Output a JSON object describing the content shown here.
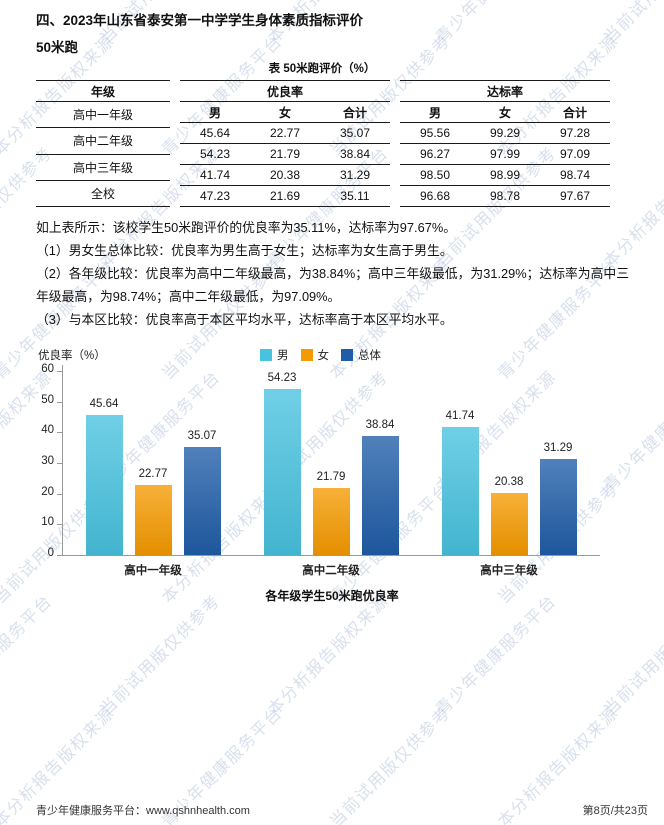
{
  "page": {
    "title": "四、2023年山东省泰安第一中学学生身体素质指标评价",
    "subtitle": "50米跑",
    "footer_left": "青少年健康服务平台：www.qshnhealth.com",
    "footer_right": "第8页/共23页"
  },
  "watermark": {
    "phrases": [
      "青少年健康服务平台",
      "当前试用版仅供参考",
      "本分析报告版权来源"
    ],
    "color": "rgba(162,180,212,0.42)"
  },
  "table": {
    "caption": "表 50米跑评价（%）",
    "row_header": "年级",
    "groups": [
      {
        "label": "优良率",
        "columns": [
          "男",
          "女",
          "合计"
        ]
      },
      {
        "label": "达标率",
        "columns": [
          "男",
          "女",
          "合计"
        ]
      }
    ],
    "rows": [
      {
        "label": "高中一年级",
        "excellent": [
          "45.64",
          "22.77",
          "35.07"
        ],
        "pass": [
          "95.56",
          "99.29",
          "97.28"
        ]
      },
      {
        "label": "高中二年级",
        "excellent": [
          "54.23",
          "21.79",
          "38.84"
        ],
        "pass": [
          "96.27",
          "97.99",
          "97.09"
        ]
      },
      {
        "label": "高中三年级",
        "excellent": [
          "41.74",
          "20.38",
          "31.29"
        ],
        "pass": [
          "98.50",
          "98.99",
          "98.74"
        ]
      },
      {
        "label": "全校",
        "excellent": [
          "47.23",
          "21.69",
          "35.11"
        ],
        "pass": [
          "96.68",
          "98.78",
          "97.67"
        ]
      }
    ]
  },
  "analysis": {
    "lines": [
      "如上表所示：该校学生50米跑评价的优良率为35.11%，达标率为97.67%。",
      "（1）男女生总体比较：优良率为男生高于女生；达标率为女生高于男生。",
      "（2）各年级比较：优良率为高中二年级最高，为38.84%；高中三年级最低，为31.29%；达标率为高中三年级最高，为98.74%；高中二年级最低，为97.09%。",
      "（3）与本区比较：优良率高于本区平均水平，达标率高于本区平均水平。"
    ]
  },
  "chart_data": {
    "type": "bar",
    "title": "各年级学生50米跑优良率",
    "ylabel": "优良率（%）",
    "categories": [
      "高中一年级",
      "高中二年级",
      "高中三年级"
    ],
    "series": [
      {
        "name": "男",
        "color": "#48c2df",
        "values": [
          45.64,
          54.23,
          41.74
        ]
      },
      {
        "name": "女",
        "color": "#f59a00",
        "values": [
          22.77,
          21.79,
          20.38
        ]
      },
      {
        "name": "总体",
        "color": "#1f5da8",
        "values": [
          35.07,
          38.84,
          31.29
        ]
      }
    ],
    "ylim": [
      0,
      60
    ],
    "ytick_step": 10,
    "grid": false,
    "legend_position": "top-center"
  }
}
